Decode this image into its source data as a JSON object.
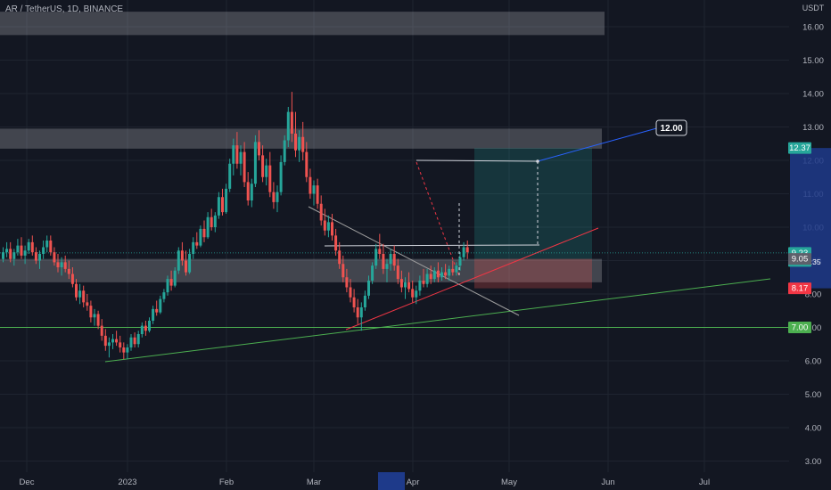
{
  "header": {
    "title": "AR / TetherUS, 1D, BINANCE"
  },
  "colors": {
    "background": "#131722",
    "candle_up": "#26a69a",
    "candle_down": "#ef5350",
    "axis_text": "#b2b5be",
    "zone_fill": "#ffffff",
    "target_fill": "#26a69a",
    "stop_fill": "#ef5350",
    "support_line": "#4caf50",
    "trend_red": "#f23645",
    "projection_line": "#2962ff",
    "highlight_axis": "#1e3a8a"
  },
  "chart_data": {
    "type": "candlestick",
    "title": "AR / TetherUS, 1D, BINANCE",
    "y_axis_unit": "USDT",
    "ylim": [
      2.6,
      16.6
    ],
    "y_ticks": [
      "16.00",
      "15.00",
      "14.00",
      "13.00",
      "12.00",
      "11.00",
      "10.00",
      "9.00",
      "8.00",
      "7.00",
      "6.00",
      "5.00",
      "4.00",
      "3.00"
    ],
    "x_ticks": [
      "Dec",
      "2023",
      "Feb",
      "Mar",
      "Apr",
      "May",
      "Jun",
      "Jul"
    ],
    "grid": true,
    "price_labels": [
      {
        "text": "12.37",
        "value": 12.37,
        "color": "#26a69a"
      },
      {
        "text": "9.23",
        "value": 9.23,
        "color": "#26a69a",
        "sub": "07:03:35"
      },
      {
        "text": "9.05",
        "value": 9.05,
        "color": "#5d606b"
      },
      {
        "text": "8.17",
        "value": 8.17,
        "color": "#f23645"
      },
      {
        "text": "7.00",
        "value": 7.0,
        "color": "#4caf50"
      }
    ],
    "annotations": [
      {
        "text": "12.00",
        "value": 12.0
      }
    ],
    "zones": [
      {
        "name": "resistance-zone-top",
        "from": 15.75,
        "to": 16.45
      },
      {
        "name": "resistance-zone-mid",
        "from": 12.35,
        "to": 12.95
      },
      {
        "name": "support-zone",
        "from": 8.35,
        "to": 9.05
      }
    ],
    "target_box": {
      "from": 9.05,
      "to": 12.37
    },
    "stop_box": {
      "from": 8.17,
      "to": 9.05
    },
    "candles": [
      [
        9.05,
        9.4,
        8.95,
        9.25
      ],
      [
        9.25,
        9.55,
        9.1,
        9.35
      ],
      [
        9.35,
        9.55,
        8.95,
        9.05
      ],
      [
        9.05,
        9.35,
        8.85,
        9.25
      ],
      [
        9.25,
        9.65,
        9.15,
        9.45
      ],
      [
        9.45,
        9.7,
        9.05,
        9.15
      ],
      [
        9.15,
        9.45,
        8.9,
        9.3
      ],
      [
        9.3,
        9.65,
        9.2,
        9.55
      ],
      [
        9.55,
        9.75,
        9.15,
        9.25
      ],
      [
        9.25,
        9.4,
        8.9,
        9.0
      ],
      [
        9.0,
        9.3,
        8.75,
        9.2
      ],
      [
        9.2,
        9.6,
        9.05,
        9.4
      ],
      [
        9.4,
        9.75,
        9.25,
        9.6
      ],
      [
        9.6,
        9.75,
        9.15,
        9.25
      ],
      [
        9.25,
        9.4,
        8.85,
        8.95
      ],
      [
        8.95,
        9.2,
        8.65,
        8.8
      ],
      [
        8.8,
        9.1,
        8.55,
        8.95
      ],
      [
        8.95,
        9.15,
        8.65,
        8.75
      ],
      [
        8.75,
        9.0,
        8.45,
        8.6
      ],
      [
        8.6,
        8.8,
        8.2,
        8.3
      ],
      [
        8.3,
        8.45,
        7.8,
        7.9
      ],
      [
        7.9,
        8.3,
        7.7,
        8.1
      ],
      [
        8.1,
        8.25,
        7.6,
        7.75
      ],
      [
        7.75,
        8.0,
        7.5,
        7.65
      ],
      [
        7.65,
        7.8,
        7.15,
        7.3
      ],
      [
        7.3,
        7.55,
        7.05,
        7.4
      ],
      [
        7.4,
        7.5,
        6.95,
        7.05
      ],
      [
        7.05,
        7.25,
        6.6,
        6.75
      ],
      [
        6.75,
        6.95,
        6.3,
        6.45
      ],
      [
        6.45,
        6.7,
        6.1,
        6.55
      ],
      [
        6.55,
        6.8,
        6.35,
        6.65
      ],
      [
        6.65,
        6.9,
        6.45,
        6.55
      ],
      [
        6.55,
        6.75,
        6.25,
        6.4
      ],
      [
        6.4,
        6.55,
        6.05,
        6.25
      ],
      [
        6.25,
        6.5,
        6.05,
        6.4
      ],
      [
        6.4,
        6.8,
        6.3,
        6.7
      ],
      [
        6.7,
        6.85,
        6.4,
        6.5
      ],
      [
        6.5,
        6.9,
        6.4,
        6.8
      ],
      [
        6.8,
        7.15,
        6.7,
        7.05
      ],
      [
        7.05,
        7.2,
        6.75,
        6.9
      ],
      [
        6.9,
        7.3,
        6.85,
        7.2
      ],
      [
        7.2,
        7.65,
        7.1,
        7.55
      ],
      [
        7.55,
        7.8,
        7.35,
        7.45
      ],
      [
        7.45,
        7.95,
        7.4,
        7.85
      ],
      [
        7.85,
        8.15,
        7.75,
        8.05
      ],
      [
        8.05,
        8.55,
        7.95,
        8.45
      ],
      [
        8.45,
        8.7,
        8.1,
        8.25
      ],
      [
        8.25,
        8.8,
        8.2,
        8.7
      ],
      [
        8.7,
        9.4,
        8.6,
        9.3
      ],
      [
        9.3,
        9.55,
        8.85,
        9.0
      ],
      [
        9.0,
        9.3,
        8.55,
        8.65
      ],
      [
        8.65,
        9.35,
        8.6,
        9.2
      ],
      [
        9.2,
        9.7,
        9.05,
        9.55
      ],
      [
        9.55,
        9.85,
        9.35,
        9.45
      ],
      [
        9.45,
        10.05,
        9.4,
        9.95
      ],
      [
        9.95,
        10.2,
        9.55,
        9.7
      ],
      [
        9.7,
        10.45,
        9.65,
        10.3
      ],
      [
        10.3,
        10.55,
        9.9,
        10.0
      ],
      [
        10.0,
        10.45,
        9.85,
        10.35
      ],
      [
        10.35,
        11.05,
        10.25,
        10.9
      ],
      [
        10.9,
        11.15,
        10.35,
        10.45
      ],
      [
        10.45,
        11.3,
        10.4,
        11.15
      ],
      [
        11.15,
        12.05,
        11.05,
        11.9
      ],
      [
        11.9,
        12.65,
        11.55,
        12.45
      ],
      [
        12.45,
        12.85,
        11.75,
        11.9
      ],
      [
        11.9,
        12.45,
        11.55,
        12.25
      ],
      [
        12.25,
        12.55,
        11.2,
        11.35
      ],
      [
        11.35,
        11.65,
        10.65,
        10.8
      ],
      [
        10.8,
        11.45,
        10.6,
        11.3
      ],
      [
        11.3,
        12.75,
        11.2,
        12.55
      ],
      [
        12.55,
        12.9,
        12.0,
        12.15
      ],
      [
        12.15,
        12.45,
        11.35,
        11.5
      ],
      [
        11.5,
        12.05,
        11.25,
        11.85
      ],
      [
        11.85,
        12.25,
        10.9,
        11.05
      ],
      [
        11.05,
        11.35,
        10.55,
        10.75
      ],
      [
        10.75,
        11.25,
        10.45,
        11.05
      ],
      [
        11.05,
        12.15,
        10.95,
        11.95
      ],
      [
        11.95,
        12.75,
        11.85,
        12.6
      ],
      [
        12.6,
        13.6,
        12.4,
        13.45
      ],
      [
        13.45,
        14.05,
        12.55,
        12.8
      ],
      [
        12.8,
        13.45,
        12.1,
        12.3
      ],
      [
        12.3,
        12.9,
        11.95,
        12.7
      ],
      [
        12.7,
        13.15,
        12.0,
        12.25
      ],
      [
        12.25,
        12.55,
        11.35,
        11.5
      ],
      [
        11.5,
        11.75,
        10.85,
        11.0
      ],
      [
        11.0,
        11.4,
        10.65,
        11.25
      ],
      [
        11.25,
        11.45,
        10.55,
        10.7
      ],
      [
        10.7,
        10.95,
        10.05,
        10.2
      ],
      [
        10.2,
        10.55,
        9.75,
        9.9
      ],
      [
        9.9,
        10.35,
        9.7,
        10.15
      ],
      [
        10.15,
        10.4,
        9.6,
        9.75
      ],
      [
        9.75,
        9.95,
        9.15,
        9.3
      ],
      [
        9.3,
        9.55,
        8.75,
        8.9
      ],
      [
        8.9,
        9.15,
        8.35,
        8.5
      ],
      [
        8.5,
        8.75,
        8.05,
        8.2
      ],
      [
        8.2,
        8.45,
        7.75,
        7.9
      ],
      [
        7.9,
        8.15,
        7.45,
        7.6
      ],
      [
        7.6,
        7.85,
        7.1,
        7.3
      ],
      [
        7.3,
        7.75,
        6.9,
        7.6
      ],
      [
        7.6,
        8.1,
        7.5,
        7.95
      ],
      [
        7.95,
        8.55,
        7.85,
        8.4
      ],
      [
        8.4,
        8.95,
        8.3,
        8.85
      ],
      [
        8.85,
        9.5,
        8.75,
        9.35
      ],
      [
        9.35,
        9.8,
        9.05,
        9.2
      ],
      [
        9.2,
        9.5,
        8.6,
        8.75
      ],
      [
        8.75,
        9.05,
        8.35,
        8.9
      ],
      [
        8.9,
        9.35,
        8.7,
        9.2
      ],
      [
        9.2,
        9.45,
        8.7,
        8.85
      ],
      [
        8.85,
        9.05,
        8.3,
        8.45
      ],
      [
        8.45,
        8.7,
        8.05,
        8.2
      ],
      [
        8.2,
        8.5,
        7.85,
        8.35
      ],
      [
        8.35,
        8.65,
        8.05,
        8.15
      ],
      [
        8.15,
        8.4,
        7.75,
        7.9
      ],
      [
        7.9,
        8.25,
        7.7,
        8.1
      ],
      [
        8.1,
        8.55,
        7.95,
        8.4
      ],
      [
        8.4,
        8.75,
        8.2,
        8.3
      ],
      [
        8.3,
        8.75,
        8.2,
        8.6
      ],
      [
        8.6,
        8.85,
        8.3,
        8.45
      ],
      [
        8.45,
        8.8,
        8.35,
        8.7
      ],
      [
        8.7,
        8.95,
        8.35,
        8.5
      ],
      [
        8.5,
        8.8,
        8.4,
        8.65
      ],
      [
        8.65,
        8.9,
        8.45,
        8.55
      ],
      [
        8.55,
        8.85,
        8.4,
        8.75
      ],
      [
        8.75,
        9.0,
        8.55,
        8.65
      ],
      [
        8.65,
        8.95,
        8.55,
        8.85
      ],
      [
        8.85,
        9.25,
        8.7,
        9.1
      ],
      [
        9.1,
        9.55,
        9.0,
        9.4
      ],
      [
        9.4,
        9.6,
        9.05,
        9.25
      ]
    ]
  }
}
